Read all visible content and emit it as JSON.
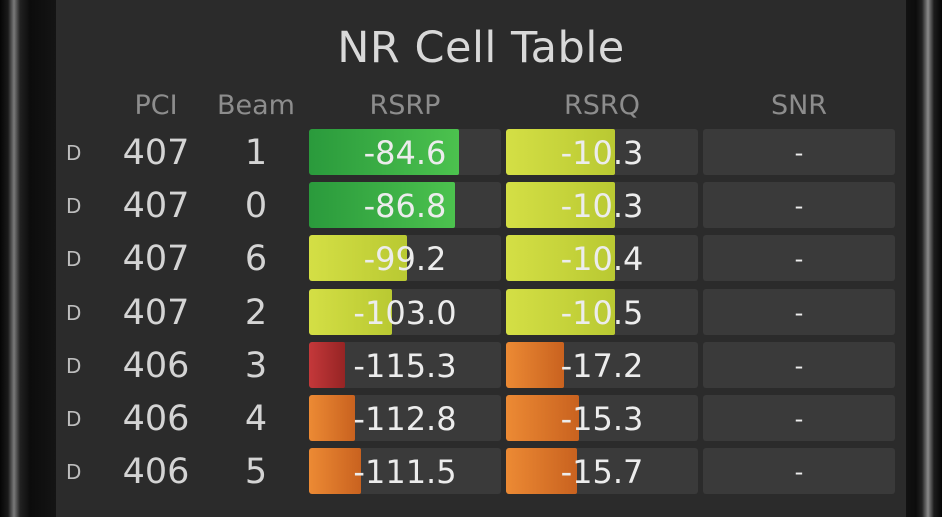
{
  "title": "NR Cell Table",
  "headers": {
    "pci": "PCI",
    "beam": "Beam",
    "rsrp": "RSRP",
    "rsrq": "RSRQ",
    "snr": "SNR"
  },
  "colors": {
    "green": "#3cb648",
    "yellow_green": "#c9d83b",
    "orange": "#e0782a",
    "red": "#b3302e"
  },
  "rows": [
    {
      "dir": "D",
      "pci": "407",
      "beam": "1",
      "rsrp": "-84.6",
      "rsrp_level": 0.78,
      "rsrp_color": "green",
      "rsrq": "-10.3",
      "rsrq_level": 0.57,
      "rsrq_color": "yellow_green",
      "snr": "-"
    },
    {
      "dir": "D",
      "pci": "407",
      "beam": "0",
      "rsrp": "-86.8",
      "rsrp_level": 0.76,
      "rsrp_color": "green",
      "rsrq": "-10.3",
      "rsrq_level": 0.57,
      "rsrq_color": "yellow_green",
      "snr": "-"
    },
    {
      "dir": "D",
      "pci": "407",
      "beam": "6",
      "rsrp": "-99.2",
      "rsrp_level": 0.51,
      "rsrp_color": "yellow_green",
      "rsrq": "-10.4",
      "rsrq_level": 0.57,
      "rsrq_color": "yellow_green",
      "snr": "-"
    },
    {
      "dir": "D",
      "pci": "407",
      "beam": "2",
      "rsrp": "-103.0",
      "rsrp_level": 0.43,
      "rsrp_color": "yellow_green",
      "rsrq": "-10.5",
      "rsrq_level": 0.57,
      "rsrq_color": "yellow_green",
      "snr": "-"
    },
    {
      "dir": "D",
      "pci": "406",
      "beam": "3",
      "rsrp": "-115.3",
      "rsrp_level": 0.19,
      "rsrp_color": "red",
      "rsrq": "-17.2",
      "rsrq_level": 0.3,
      "rsrq_color": "orange",
      "snr": "-"
    },
    {
      "dir": "D",
      "pci": "406",
      "beam": "4",
      "rsrp": "-112.8",
      "rsrp_level": 0.24,
      "rsrp_color": "orange",
      "rsrq": "-15.3",
      "rsrq_level": 0.38,
      "rsrq_color": "orange",
      "snr": "-"
    },
    {
      "dir": "D",
      "pci": "406",
      "beam": "5",
      "rsrp": "-111.5",
      "rsrp_level": 0.27,
      "rsrp_color": "orange",
      "rsrq": "-15.7",
      "rsrq_level": 0.37,
      "rsrq_color": "orange",
      "snr": "-"
    }
  ]
}
